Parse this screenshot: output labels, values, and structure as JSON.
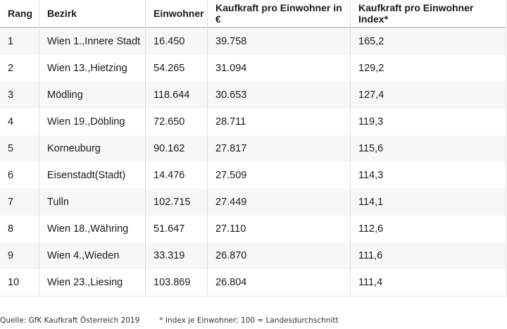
{
  "table": {
    "headers": [
      "Rang",
      "Bezirk",
      "Einwohner",
      "Kaufkraft pro Einwohner in €",
      "Kaufkraft pro Einwohner Index*"
    ],
    "rows": [
      [
        "1",
        "Wien  1.,Innere Stadt",
        "16.450",
        "39.758",
        "165,2"
      ],
      [
        "2",
        "Wien 13.,Hietzing",
        "54.265",
        "31.094",
        "129,2"
      ],
      [
        "3",
        "Mödling",
        "118.644",
        "30.653",
        "127,4"
      ],
      [
        "4",
        "Wien 19.,Döbling",
        "72.650",
        "28.711",
        "119,3"
      ],
      [
        "5",
        "Korneuburg",
        "90.162",
        "27.817",
        "115,6"
      ],
      [
        "6",
        "Eisenstadt(Stadt)",
        "14.476",
        "27.509",
        "114,3"
      ],
      [
        "7",
        "Tulln",
        "102.715",
        "27.449",
        "114,1"
      ],
      [
        "8",
        "Wien 18.,Währing",
        "51.647",
        "27.110",
        "112,6"
      ],
      [
        "9",
        "Wien  4.,Wieden",
        "33.319",
        "26.870",
        "111,6"
      ],
      [
        "10",
        "Wien 23.,Liesing",
        "103.869",
        "26.804",
        "111,4"
      ]
    ]
  },
  "footer": {
    "source": "Quelle: GfK Kaufkraft Österreich 2019",
    "note": "* Index je Einwohner; 100 = Landesdurchschnitt"
  }
}
